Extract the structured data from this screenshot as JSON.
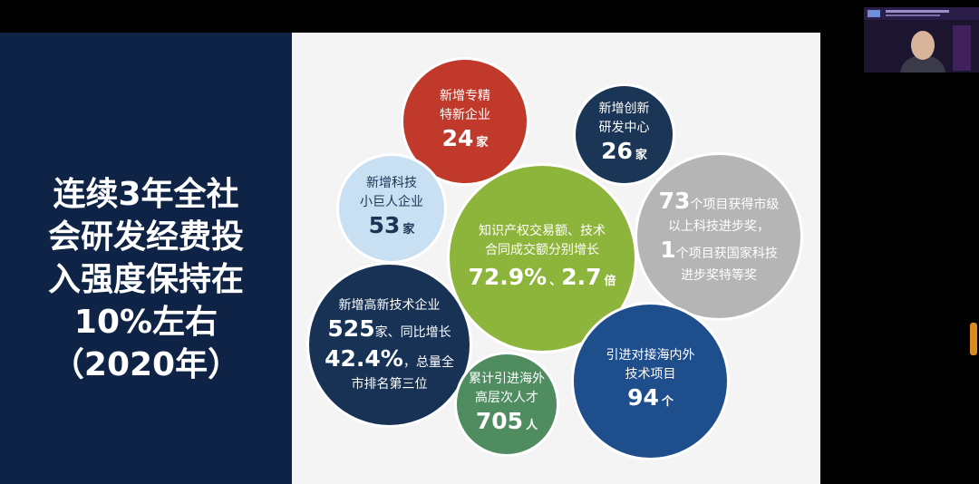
{
  "slide": {
    "headline_lines": [
      "连续3年全社",
      "会研发经费投",
      "入强度保持在",
      "10%左右",
      "（2020年）"
    ]
  },
  "bubbles": {
    "red": {
      "lines": [
        "新增专精",
        "特新企业"
      ],
      "number": "24",
      "unit": "家"
    },
    "navy1": {
      "lines": [
        "新增创新",
        "研发中心"
      ],
      "number": "26",
      "unit": "家"
    },
    "lblue": {
      "lines": [
        "新增科技",
        "小巨人企业"
      ],
      "number": "53",
      "unit": "家"
    },
    "green": {
      "lines": [
        "知识产权交易额、技术",
        "合同成交额分别增长"
      ],
      "number1": "72.9%",
      "sep": "、",
      "number2": "2.7",
      "unit": "倍"
    },
    "gray": {
      "number1": "73",
      "text1": "个项目获得市级",
      "line2": "以上科技进步奖，",
      "number2": "1",
      "text2": "个项目获国家科技",
      "line4": "进步奖特等奖"
    },
    "navy2": {
      "line1": "新增高新技术企业",
      "number1": "525",
      "text1": "家、同比增长",
      "number2": "42.4%",
      "text2": "，总量全",
      "line4": "市排名第三位"
    },
    "dgreen": {
      "lines": [
        "累计引进海外",
        "高层次人才"
      ],
      "number": "705",
      "unit": "人"
    },
    "blue": {
      "lines": [
        "引进对接海内外",
        "技术项目"
      ],
      "number": "94",
      "unit": "个"
    }
  },
  "colors": {
    "left_panel": "#0f2346",
    "red": "#c0392b",
    "navy": "#1a3555",
    "light_blue": "#c9dff2",
    "green": "#8db43b",
    "gray": "#b5b5b5",
    "dark_green": "#4f8c5f",
    "blue": "#1f4e8c",
    "scroll_accent": "#d98b1f"
  }
}
